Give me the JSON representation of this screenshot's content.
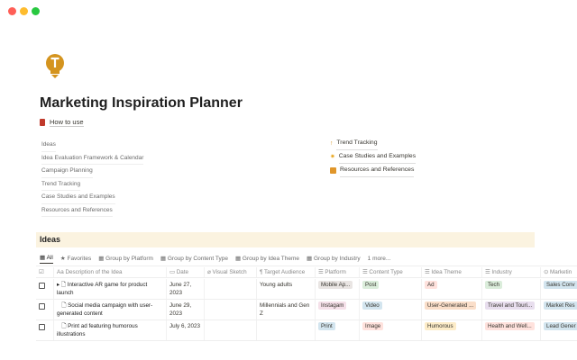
{
  "window": {
    "colors": [
      "#ff5f57",
      "#febc2e",
      "#28c840"
    ]
  },
  "page": {
    "title": "Marketing Inspiration Planner",
    "how_to_use": "How to use",
    "links": [
      "Ideas",
      "Idea Evaluation Framework & Calendar",
      "Campaign Planning",
      "Trend Tracking",
      "Case Studies and Examples",
      "Resources and References"
    ],
    "featured": [
      {
        "icon": "arrow-up-icon",
        "label": "Trend Tracking"
      },
      {
        "icon": "sun-icon",
        "label": "Case Studies and Examples"
      },
      {
        "icon": "note-icon",
        "label": "Resources and References"
      }
    ]
  },
  "db": {
    "title": "Ideas",
    "tabs": [
      "All",
      "Favorites",
      "Group by Platform",
      "Group by Content Type",
      "Group by Idea Theme",
      "Group by Industry",
      "1 more..."
    ],
    "columns": [
      "Description of the Idea",
      "Date",
      "Visual Sketch",
      "Target Audience",
      "Platform",
      "Content Type",
      "Idea Theme",
      "Industry",
      "Marketin"
    ],
    "rows": [
      {
        "desc": "Interactive AR game for product launch",
        "date": "June 27, 2023",
        "audience": "Young adults",
        "platform": "Mobile Ap...",
        "content": "Post",
        "theme": "Ad",
        "industry": "Tech",
        "marketing": "Sales Conv"
      },
      {
        "desc": "Social media campaign with user-generated content",
        "date": "June 29, 2023",
        "audience": "Millennials and Gen Z",
        "platform": "Instagam",
        "content": "Video",
        "theme": "User-Generated ...",
        "industry": "Travel and Touri...",
        "marketing": "Market Res"
      },
      {
        "desc": "Print ad featuring humorous illustrations",
        "date": "July 6, 2023",
        "audience": "",
        "platform": "Print",
        "content": "Image",
        "theme": "Humorous",
        "industry": "Health and Well...",
        "marketing": "Lead Gener"
      }
    ]
  }
}
